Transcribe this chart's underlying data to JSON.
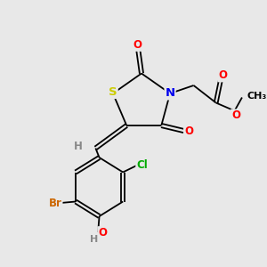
{
  "background_color": "#e8e8e8",
  "atom_colors": {
    "S": "#cccc00",
    "N": "#0000ee",
    "O": "#ff0000",
    "Br": "#cc6600",
    "Cl": "#00aa00",
    "H": "#888888",
    "C": "#000000"
  },
  "bond_color": "#000000",
  "font_size": 8.5,
  "fig_width": 3.0,
  "fig_height": 3.0,
  "dpi": 100,
  "lw": 1.3
}
